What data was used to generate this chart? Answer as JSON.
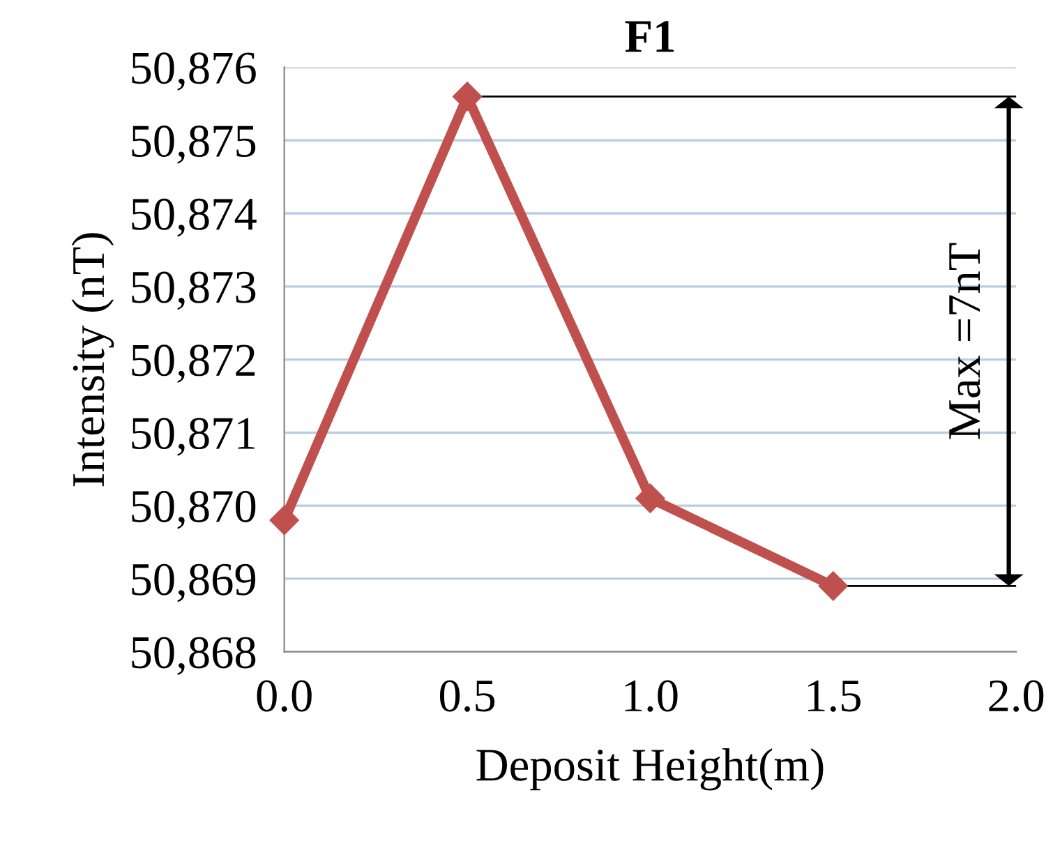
{
  "chart_data": {
    "type": "line",
    "title": "F1",
    "xlabel": "Deposit Height(m)",
    "ylabel": "Intensity (nT)",
    "x": [
      0.0,
      0.5,
      1.0,
      1.5
    ],
    "series": [
      {
        "color": "#c0504d",
        "values": [
          50869.8,
          50875.6,
          50870.1,
          50868.9
        ]
      }
    ],
    "xlim": [
      0,
      2
    ],
    "xticks": [
      {
        "value": 0,
        "label": "0.0"
      },
      {
        "value": 0.5,
        "label": "0.5"
      },
      {
        "value": 1,
        "label": "1.0"
      },
      {
        "value": 1.5,
        "label": "1.5"
      },
      {
        "value": 2,
        "label": "2.0"
      }
    ],
    "ylim": [
      50868,
      50876
    ],
    "yticks": [
      {
        "value": 50868,
        "label": "50,868"
      },
      {
        "value": 50869,
        "label": "50,869"
      },
      {
        "value": 50870,
        "label": "50,870"
      },
      {
        "value": 50871,
        "label": "50,871"
      },
      {
        "value": 50872,
        "label": "50,872"
      },
      {
        "value": 50873,
        "label": "50,873"
      },
      {
        "value": 50874,
        "label": "50,874"
      },
      {
        "value": 50875,
        "label": "50,875"
      },
      {
        "value": 50876,
        "label": "50,876"
      }
    ],
    "ref_lines": [
      {
        "axis": "y",
        "value": 50875.6,
        "color": "#000000"
      },
      {
        "axis": "y",
        "value": 50868.9,
        "color": "#000000"
      }
    ],
    "grid": "y",
    "marker": "diamond",
    "line_style": "solid",
    "legend": false,
    "annotations": [
      "Max =7nT"
    ]
  }
}
